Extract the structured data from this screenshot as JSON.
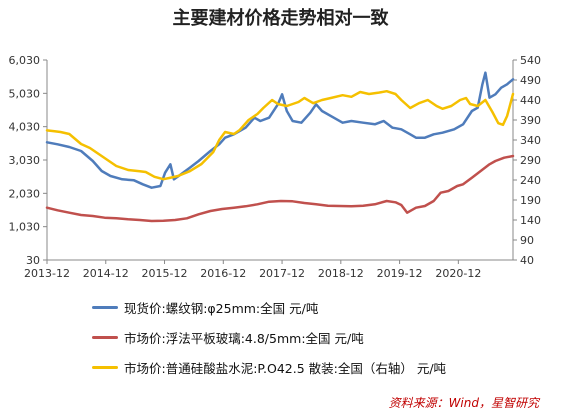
{
  "title": "主要建材价格走势相对一致",
  "source": "资料来源：Wind，星智研究",
  "colors": {
    "rebar": "#4f7cbb",
    "glass": "#c0504d",
    "cement": "#f5c000"
  },
  "chart_data": {
    "type": "line",
    "title": "主要建材价格走势相对一致",
    "x_ticks": [
      "2013-12",
      "2014-12",
      "2015-12",
      "2016-12",
      "2017-12",
      "2018-12",
      "2019-12",
      "2020-12"
    ],
    "x_range": [
      2013.92,
      2021.85
    ],
    "left_axis": {
      "ticks": [
        "6,030",
        "5,030",
        "4,030",
        "3,030",
        "2,030",
        "1,030",
        "30"
      ],
      "ylim": [
        30,
        6030
      ]
    },
    "right_axis": {
      "ticks": [
        "540",
        "490",
        "440",
        "390",
        "340",
        "290",
        "240",
        "190",
        "140",
        "90",
        "40"
      ],
      "ylim": [
        40,
        540
      ]
    },
    "legend_position": "bottom",
    "grid": false,
    "series": [
      {
        "name": "现货价:螺纹钢:φ25mm:全国 元/吨",
        "axis": "left",
        "color": "#4f7cbb",
        "points": [
          [
            2013.92,
            3560
          ],
          [
            2014.1,
            3500
          ],
          [
            2014.3,
            3420
          ],
          [
            2014.5,
            3300
          ],
          [
            2014.7,
            3000
          ],
          [
            2014.85,
            2700
          ],
          [
            2015.0,
            2550
          ],
          [
            2015.2,
            2450
          ],
          [
            2015.4,
            2420
          ],
          [
            2015.55,
            2300
          ],
          [
            2015.7,
            2200
          ],
          [
            2015.85,
            2250
          ],
          [
            2015.93,
            2650
          ],
          [
            2016.02,
            2900
          ],
          [
            2016.08,
            2450
          ],
          [
            2016.2,
            2600
          ],
          [
            2016.35,
            2800
          ],
          [
            2016.5,
            3000
          ],
          [
            2016.7,
            3300
          ],
          [
            2016.85,
            3500
          ],
          [
            2016.95,
            3700
          ],
          [
            2017.1,
            3800
          ],
          [
            2017.3,
            4000
          ],
          [
            2017.45,
            4300
          ],
          [
            2017.55,
            4200
          ],
          [
            2017.7,
            4300
          ],
          [
            2017.85,
            4700
          ],
          [
            2017.92,
            5000
          ],
          [
            2018.0,
            4500
          ],
          [
            2018.1,
            4200
          ],
          [
            2018.25,
            4150
          ],
          [
            2018.4,
            4450
          ],
          [
            2018.5,
            4700
          ],
          [
            2018.6,
            4500
          ],
          [
            2018.8,
            4300
          ],
          [
            2018.95,
            4150
          ],
          [
            2019.1,
            4200
          ],
          [
            2019.3,
            4150
          ],
          [
            2019.5,
            4100
          ],
          [
            2019.65,
            4200
          ],
          [
            2019.8,
            4000
          ],
          [
            2019.95,
            3950
          ],
          [
            2020.1,
            3800
          ],
          [
            2020.2,
            3700
          ],
          [
            2020.35,
            3700
          ],
          [
            2020.5,
            3800
          ],
          [
            2020.65,
            3850
          ],
          [
            2020.85,
            3950
          ],
          [
            2021.0,
            4100
          ],
          [
            2021.15,
            4500
          ],
          [
            2021.25,
            4600
          ],
          [
            2021.33,
            5300
          ],
          [
            2021.38,
            5650
          ],
          [
            2021.45,
            4900
          ],
          [
            2021.55,
            5000
          ],
          [
            2021.65,
            5200
          ],
          [
            2021.75,
            5300
          ],
          [
            2021.85,
            5450
          ]
        ]
      },
      {
        "name": "市场价:浮法平板玻璃:4.8/5mm:全国 元/吨",
        "axis": "left",
        "color": "#c0504d",
        "points": [
          [
            2013.92,
            1600
          ],
          [
            2014.1,
            1520
          ],
          [
            2014.3,
            1450
          ],
          [
            2014.5,
            1380
          ],
          [
            2014.7,
            1350
          ],
          [
            2014.9,
            1300
          ],
          [
            2015.1,
            1280
          ],
          [
            2015.3,
            1250
          ],
          [
            2015.5,
            1230
          ],
          [
            2015.7,
            1200
          ],
          [
            2015.9,
            1210
          ],
          [
            2016.1,
            1230
          ],
          [
            2016.3,
            1280
          ],
          [
            2016.5,
            1400
          ],
          [
            2016.7,
            1500
          ],
          [
            2016.9,
            1560
          ],
          [
            2017.1,
            1600
          ],
          [
            2017.3,
            1640
          ],
          [
            2017.5,
            1700
          ],
          [
            2017.7,
            1780
          ],
          [
            2017.9,
            1800
          ],
          [
            2018.1,
            1790
          ],
          [
            2018.3,
            1740
          ],
          [
            2018.5,
            1700
          ],
          [
            2018.7,
            1660
          ],
          [
            2018.9,
            1650
          ],
          [
            2019.1,
            1640
          ],
          [
            2019.3,
            1660
          ],
          [
            2019.5,
            1700
          ],
          [
            2019.7,
            1800
          ],
          [
            2019.85,
            1760
          ],
          [
            2019.95,
            1680
          ],
          [
            2020.05,
            1450
          ],
          [
            2020.2,
            1600
          ],
          [
            2020.35,
            1650
          ],
          [
            2020.5,
            1800
          ],
          [
            2020.62,
            2050
          ],
          [
            2020.75,
            2100
          ],
          [
            2020.9,
            2250
          ],
          [
            2021.0,
            2300
          ],
          [
            2021.15,
            2500
          ],
          [
            2021.3,
            2700
          ],
          [
            2021.45,
            2900
          ],
          [
            2021.55,
            3000
          ],
          [
            2021.7,
            3100
          ],
          [
            2021.85,
            3150
          ]
        ]
      },
      {
        "name": "市场价:普通硅酸盐水泥:P.O42.5 散装:全国（右轴） 元/吨",
        "axis": "right",
        "color": "#f5c000",
        "points": [
          [
            2013.92,
            364
          ],
          [
            2014.05,
            362
          ],
          [
            2014.15,
            360
          ],
          [
            2014.3,
            355
          ],
          [
            2014.5,
            330
          ],
          [
            2014.65,
            320
          ],
          [
            2014.8,
            305
          ],
          [
            2014.95,
            290
          ],
          [
            2015.1,
            275
          ],
          [
            2015.3,
            265
          ],
          [
            2015.5,
            262
          ],
          [
            2015.6,
            260
          ],
          [
            2015.75,
            248
          ],
          [
            2015.9,
            242
          ],
          [
            2016.0,
            245
          ],
          [
            2016.15,
            250
          ],
          [
            2016.35,
            262
          ],
          [
            2016.55,
            280
          ],
          [
            2016.75,
            310
          ],
          [
            2016.85,
            340
          ],
          [
            2016.95,
            360
          ],
          [
            2017.1,
            355
          ],
          [
            2017.2,
            365
          ],
          [
            2017.35,
            390
          ],
          [
            2017.5,
            405
          ],
          [
            2017.6,
            420
          ],
          [
            2017.75,
            440
          ],
          [
            2017.85,
            430
          ],
          [
            2018.0,
            425
          ],
          [
            2018.2,
            435
          ],
          [
            2018.3,
            445
          ],
          [
            2018.45,
            432
          ],
          [
            2018.6,
            440
          ],
          [
            2018.75,
            445
          ],
          [
            2018.95,
            452
          ],
          [
            2019.1,
            448
          ],
          [
            2019.25,
            460
          ],
          [
            2019.4,
            455
          ],
          [
            2019.55,
            458
          ],
          [
            2019.7,
            462
          ],
          [
            2019.85,
            455
          ],
          [
            2019.95,
            440
          ],
          [
            2020.1,
            420
          ],
          [
            2020.25,
            432
          ],
          [
            2020.4,
            440
          ],
          [
            2020.55,
            425
          ],
          [
            2020.65,
            418
          ],
          [
            2020.8,
            425
          ],
          [
            2020.95,
            440
          ],
          [
            2021.05,
            445
          ],
          [
            2021.12,
            430
          ],
          [
            2021.25,
            425
          ],
          [
            2021.38,
            440
          ],
          [
            2021.5,
            410
          ],
          [
            2021.6,
            382
          ],
          [
            2021.68,
            378
          ],
          [
            2021.75,
            400
          ],
          [
            2021.85,
            455
          ]
        ]
      }
    ]
  }
}
